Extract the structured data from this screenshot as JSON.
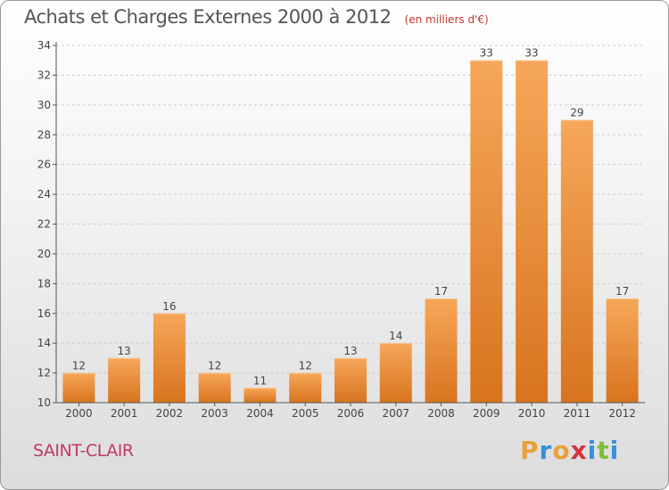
{
  "header": {
    "title": "Achats et Charges Externes 2000 à 2012",
    "subtitle": "(en milliers d'€)"
  },
  "footer": {
    "commune": "SAINT-CLAIR",
    "brand_letters": [
      "P",
      "r",
      "o",
      "x",
      "i",
      "t",
      "i"
    ],
    "brand_colors": [
      "#e8a13a",
      "#3a8fd6",
      "#e8a13a",
      "#d6343a",
      "#3a8fd6",
      "#7bbf3a",
      "#3a8fd6"
    ]
  },
  "colors": {
    "bar_top": "#f6a75a",
    "bar_bottom": "#d8741e",
    "axis": "#555555",
    "grid": "#cccccc"
  },
  "chart_data": {
    "type": "bar",
    "title": "Achats et Charges Externes 2000 à 2012",
    "subtitle": "(en milliers d'€)",
    "categories": [
      "2000",
      "2001",
      "2002",
      "2003",
      "2004",
      "2005",
      "2006",
      "2007",
      "2008",
      "2009",
      "2010",
      "2011",
      "2012"
    ],
    "values": [
      12,
      13,
      16,
      12,
      11,
      12,
      13,
      14,
      17,
      33,
      33,
      29,
      17
    ],
    "ylim": [
      10,
      34
    ],
    "yticks": [
      10,
      12,
      14,
      16,
      18,
      20,
      22,
      24,
      26,
      28,
      30,
      32,
      34
    ],
    "grid": "horizontal dashed",
    "legend": "none"
  }
}
